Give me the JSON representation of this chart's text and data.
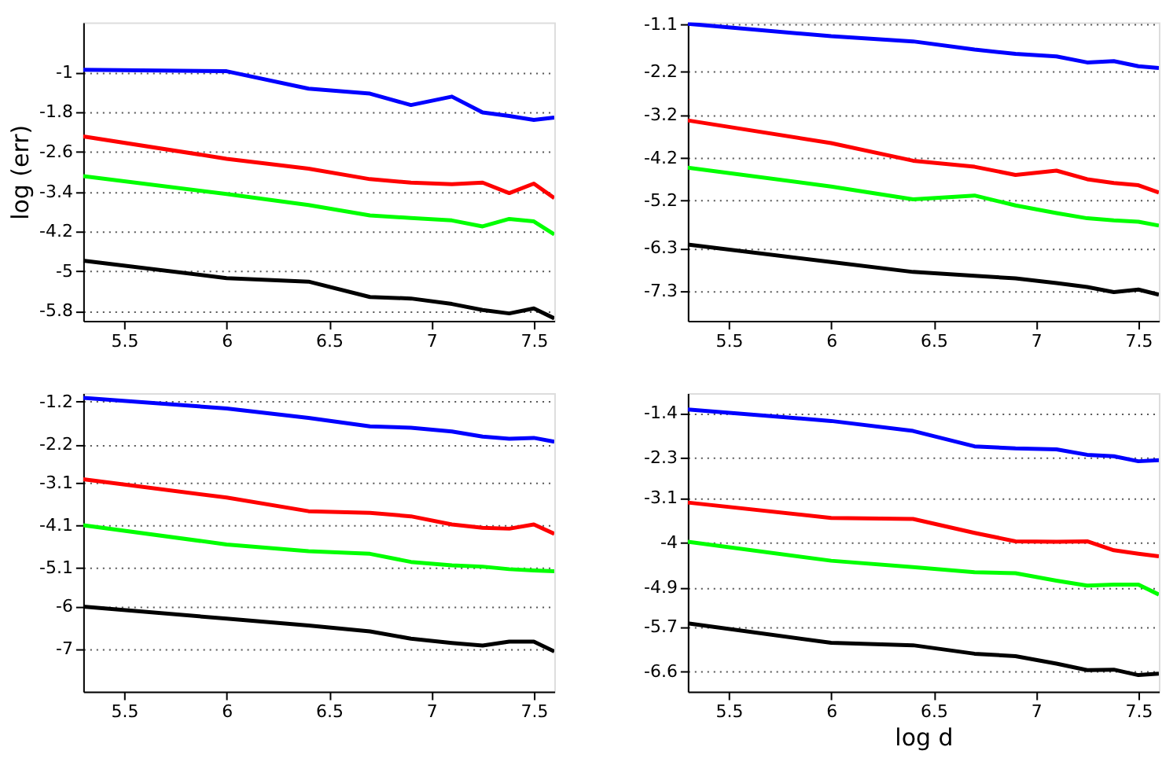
{
  "chart_data": [
    {
      "type": "line",
      "ylabel": "log (err)",
      "x": [
        5.3,
        6.0,
        6.4,
        6.7,
        6.9,
        7.1,
        7.25,
        7.38,
        7.5,
        7.6
      ],
      "xlim": [
        5.3,
        7.6
      ],
      "xticks": [
        5.5,
        6,
        6.5,
        7,
        7.5
      ],
      "ylim": [
        -6,
        0
      ],
      "yticks": [
        -1,
        -1.8,
        -2.6,
        -3.4,
        -4.2,
        -5,
        -5.8
      ],
      "grid": "y",
      "series": [
        {
          "color": "#0000ff",
          "values": [
            -0.95,
            -0.98,
            -1.33,
            -1.43,
            -1.66,
            -1.49,
            -1.81,
            -1.88,
            -1.96,
            -1.91
          ]
        },
        {
          "color": "#ff0000",
          "values": [
            -2.29,
            -2.74,
            -2.94,
            -3.15,
            -3.22,
            -3.25,
            -3.22,
            -3.43,
            -3.24,
            -3.53
          ]
        },
        {
          "color": "#00ff00",
          "values": [
            -3.09,
            -3.45,
            -3.67,
            -3.88,
            -3.93,
            -3.98,
            -4.1,
            -3.95,
            -4.0,
            -4.26
          ]
        },
        {
          "color": "#000000",
          "values": [
            -4.79,
            -5.14,
            -5.21,
            -5.52,
            -5.55,
            -5.66,
            -5.78,
            -5.85,
            -5.75,
            -5.95
          ]
        }
      ]
    },
    {
      "type": "line",
      "x": [
        5.3,
        6.0,
        6.4,
        6.7,
        6.9,
        7.1,
        7.25,
        7.38,
        7.5,
        7.6
      ],
      "xlim": [
        5.3,
        7.6
      ],
      "xticks": [
        5.5,
        6,
        6.5,
        7,
        7.5
      ],
      "ylim": [
        -8,
        -1.05
      ],
      "yticks": [
        -1.1,
        -2.2,
        -3.2,
        -4.2,
        -5.2,
        -6.3,
        -7.3
      ],
      "grid": "y",
      "series": [
        {
          "color": "#0000ff",
          "values": [
            -1.08,
            -1.37,
            -1.49,
            -1.68,
            -1.78,
            -1.84,
            -1.98,
            -1.95,
            -2.07,
            -2.11
          ]
        },
        {
          "color": "#ff0000",
          "values": [
            -3.33,
            -3.86,
            -4.27,
            -4.41,
            -4.6,
            -4.5,
            -4.7,
            -4.79,
            -4.84,
            -5.01
          ]
        },
        {
          "color": "#00ff00",
          "values": [
            -4.43,
            -4.87,
            -5.17,
            -5.08,
            -5.31,
            -5.49,
            -5.61,
            -5.66,
            -5.69,
            -5.78
          ]
        },
        {
          "color": "#000000",
          "values": [
            -6.22,
            -6.63,
            -6.86,
            -6.95,
            -7.01,
            -7.12,
            -7.21,
            -7.33,
            -7.27,
            -7.39
          ]
        }
      ]
    },
    {
      "type": "line",
      "x": [
        5.3,
        6.0,
        6.4,
        6.7,
        6.9,
        7.1,
        7.25,
        7.38,
        7.5,
        7.6
      ],
      "xlim": [
        5.3,
        7.6
      ],
      "xticks": [
        5.5,
        6,
        6.5,
        7,
        7.5
      ],
      "ylim": [
        -8,
        -1
      ],
      "yticks": [
        -1.2,
        -2.2,
        -3.1,
        -4.1,
        -5.1,
        -6,
        -7
      ],
      "grid": "y",
      "series": [
        {
          "color": "#0000ff",
          "values": [
            -1.11,
            -1.36,
            -1.58,
            -1.78,
            -1.81,
            -1.9,
            -2.02,
            -2.07,
            -2.05,
            -2.14
          ]
        },
        {
          "color": "#ff0000",
          "values": [
            -3.02,
            -3.45,
            -3.77,
            -3.81,
            -3.89,
            -4.08,
            -4.16,
            -4.18,
            -4.08,
            -4.3
          ]
        },
        {
          "color": "#00ff00",
          "values": [
            -4.1,
            -4.55,
            -4.71,
            -4.77,
            -4.96,
            -5.04,
            -5.07,
            -5.13,
            -5.16,
            -5.18
          ]
        },
        {
          "color": "#000000",
          "values": [
            -6.01,
            -6.29,
            -6.45,
            -6.59,
            -6.76,
            -6.86,
            -6.92,
            -6.83,
            -6.83,
            -7.06
          ]
        }
      ]
    },
    {
      "type": "line",
      "xlabel": "log d",
      "x": [
        5.3,
        6.0,
        6.4,
        6.7,
        6.9,
        7.1,
        7.25,
        7.38,
        7.5,
        7.6
      ],
      "xlim": [
        5.3,
        7.6
      ],
      "xticks": [
        5.5,
        6,
        6.5,
        7,
        7.5
      ],
      "ylim": [
        -7,
        -1
      ],
      "yticks": [
        -1.4,
        -2.3,
        -3.1,
        -4,
        -4.9,
        -5.7,
        -6.6
      ],
      "grid": "y",
      "series": [
        {
          "color": "#0000ff",
          "values": [
            -1.33,
            -1.56,
            -1.76,
            -2.07,
            -2.11,
            -2.13,
            -2.24,
            -2.27,
            -2.37,
            -2.35
          ]
        },
        {
          "color": "#ff0000",
          "values": [
            -3.2,
            -3.51,
            -3.53,
            -3.81,
            -3.98,
            -3.99,
            -3.98,
            -4.16,
            -4.23,
            -4.28
          ]
        },
        {
          "color": "#00ff00",
          "values": [
            -3.99,
            -4.37,
            -4.5,
            -4.6,
            -4.62,
            -4.77,
            -4.87,
            -4.85,
            -4.85,
            -5.05
          ]
        },
        {
          "color": "#000000",
          "values": [
            -5.63,
            -6.02,
            -6.07,
            -6.24,
            -6.29,
            -6.44,
            -6.57,
            -6.56,
            -6.67,
            -6.64
          ]
        }
      ]
    }
  ]
}
